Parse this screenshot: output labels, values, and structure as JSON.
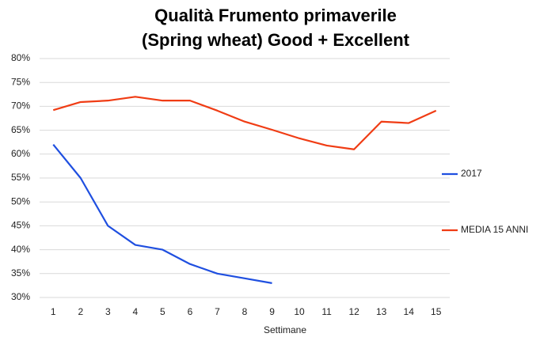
{
  "chart_data": {
    "type": "line",
    "title": [
      "Qualità Frumento primaverile",
      "(Spring wheat) Good + Excellent"
    ],
    "x_label": "Settimane",
    "categories": [
      "1",
      "2",
      "3",
      "4",
      "5",
      "6",
      "7",
      "8",
      "9",
      "10",
      "11",
      "12",
      "13",
      "14",
      "15"
    ],
    "series": [
      {
        "name": "2017",
        "color": "#1f4fe0",
        "values": [
          62,
          55,
          45,
          41,
          40,
          37,
          35,
          34,
          33,
          null,
          null,
          null,
          null,
          null,
          null
        ]
      },
      {
        "name": "MEDIA 15 ANNI",
        "color": "#f03c14",
        "values": [
          69.2,
          70.9,
          71.2,
          72,
          71.2,
          71.2,
          69.1,
          66.8,
          65.1,
          63.3,
          61.8,
          61,
          66.8,
          66.5,
          69.1
        ]
      }
    ],
    "ylim": [
      30,
      80
    ],
    "yticks": [
      {
        "value": 30,
        "label": "30%"
      },
      {
        "value": 35,
        "label": "35%"
      },
      {
        "value": 40,
        "label": "40%"
      },
      {
        "value": 45,
        "label": "45%"
      },
      {
        "value": 50,
        "label": "50%"
      },
      {
        "value": 55,
        "label": "55%"
      },
      {
        "value": 60,
        "label": "60%"
      },
      {
        "value": 65,
        "label": "65%"
      },
      {
        "value": 70,
        "label": "70%"
      },
      {
        "value": 75,
        "label": "75%"
      },
      {
        "value": 80,
        "label": "80%"
      }
    ],
    "grid": true,
    "legend": "right"
  }
}
